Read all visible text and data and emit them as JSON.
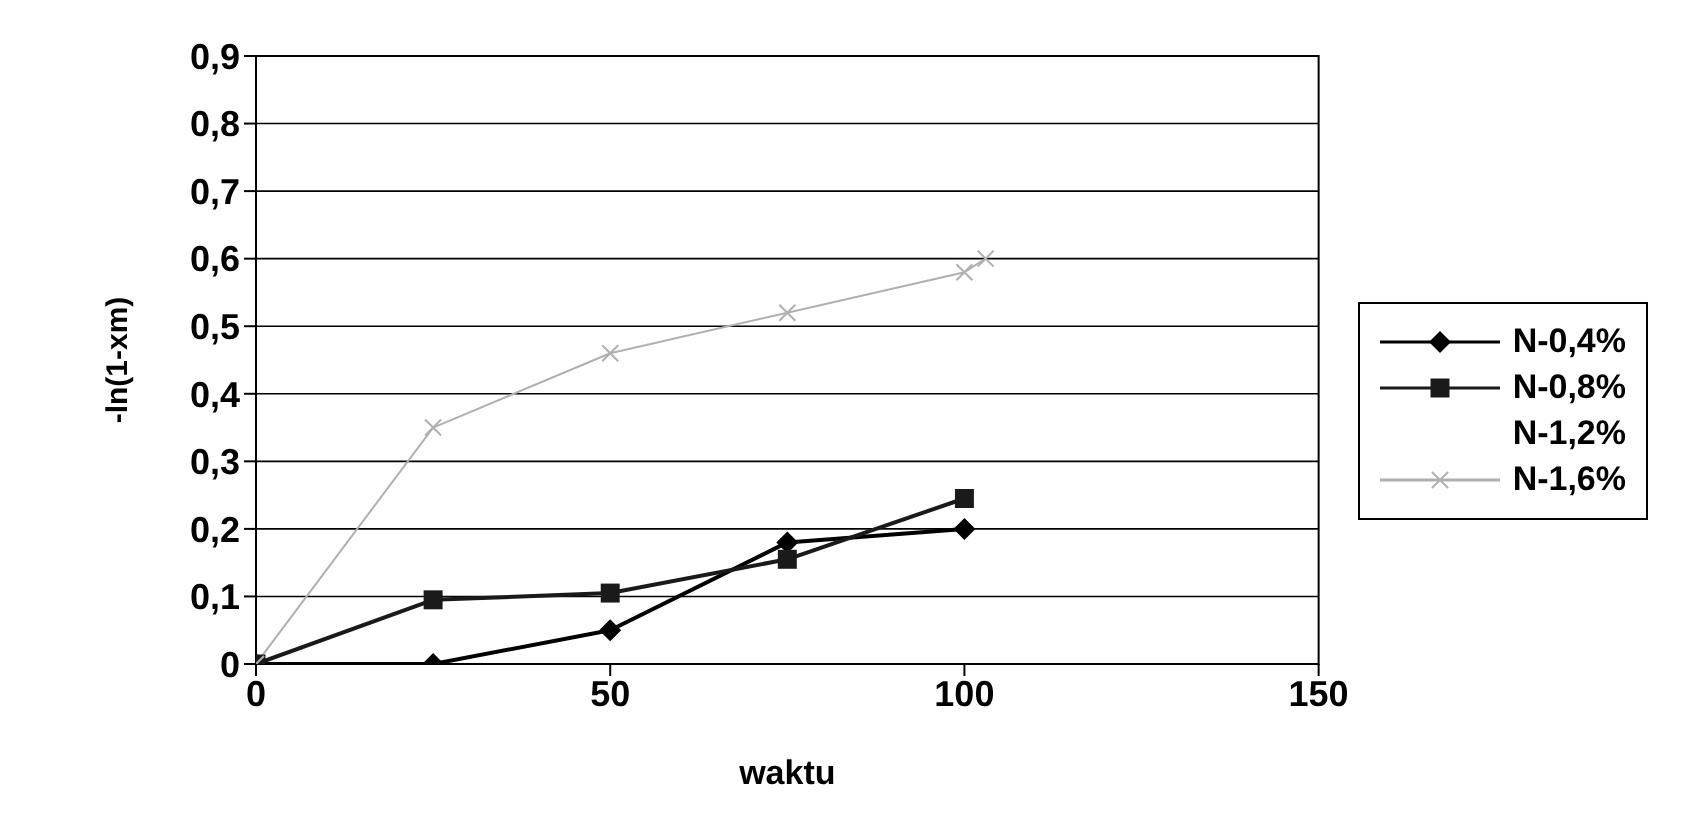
{
  "chart_data": {
    "type": "line",
    "xlabel": "waktu",
    "ylabel": "-ln(1-xm)",
    "x": [
      0,
      25,
      50,
      75,
      100
    ],
    "series": [
      {
        "name": "N-0,4%",
        "color": "#000000",
        "marker": "diamond",
        "values": [
          0,
          0,
          0.05,
          0.18,
          0.2
        ]
      },
      {
        "name": "N-0,8%",
        "color": "#1a1a1a",
        "marker": "square",
        "values": [
          0,
          0.095,
          0.105,
          0.155,
          0.245
        ]
      },
      {
        "name": "N-1,2%",
        "marker": "none",
        "values": [
          null,
          null,
          null,
          null,
          null
        ]
      },
      {
        "name": "N-1,6%",
        "color": "#b0b0b0",
        "marker": "cross",
        "x": [
          0,
          25,
          50,
          75,
          100,
          103
        ],
        "values": [
          0,
          0.35,
          0.46,
          0.52,
          0.58,
          0.6
        ]
      }
    ],
    "xlim": [
      0,
      150
    ],
    "xticks": [
      0,
      50,
      100,
      150
    ],
    "ylim": [
      0,
      0.9
    ],
    "yticks": [
      0,
      {
        "value": 0.1,
        "label": "0,1"
      },
      {
        "value": 0.2,
        "label": "0,2"
      },
      {
        "value": 0.3,
        "label": "0,3"
      },
      {
        "value": 0.4,
        "label": "0,4"
      },
      {
        "value": 0.5,
        "label": "0,5"
      },
      {
        "value": 0.6,
        "label": "0,6"
      },
      {
        "value": 0.7,
        "label": "0,7"
      },
      {
        "value": 0.8,
        "label": "0,8"
      },
      {
        "value": 0.9,
        "label": "0,9"
      }
    ],
    "grid": "y",
    "legend": "right",
    "line_style": "solid"
  }
}
